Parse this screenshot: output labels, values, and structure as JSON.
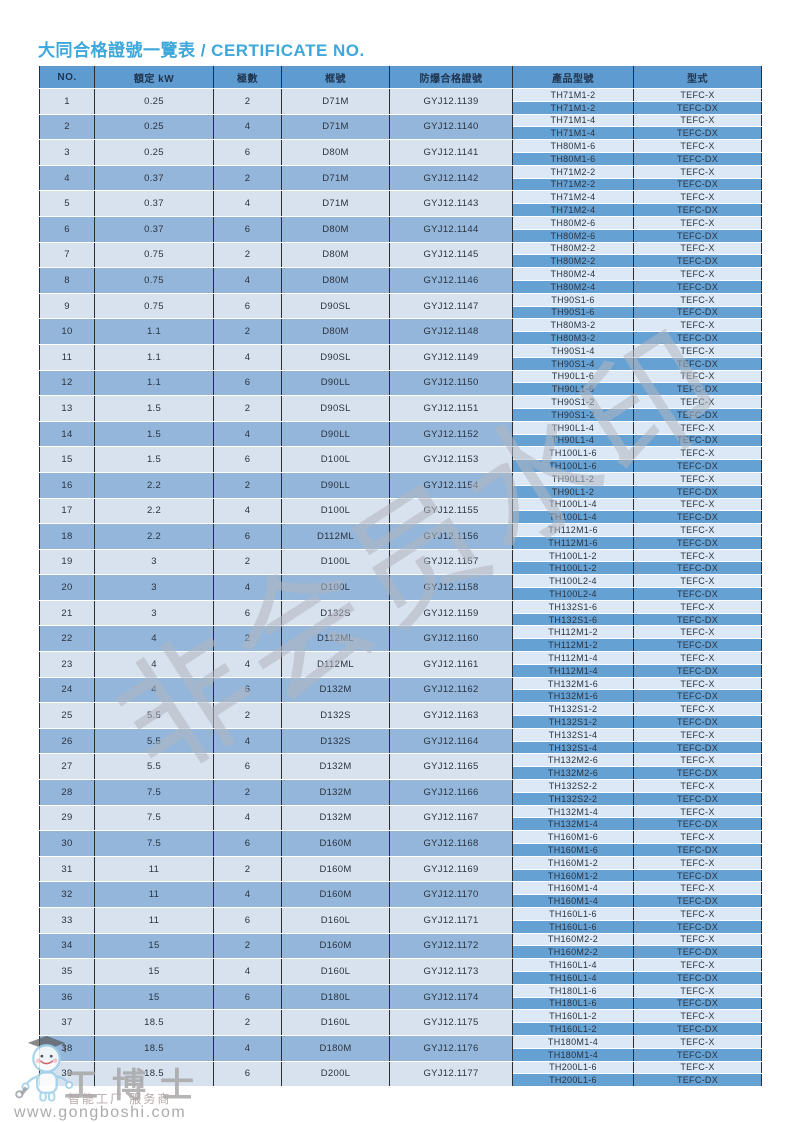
{
  "page": {
    "title": "大同合格證號一覽表 / CERTIFICATE NO."
  },
  "colors": {
    "header_bg": "#5e9bd1",
    "row_light": "#d8e1ee",
    "row_dark": "#94b6da",
    "sub_light": "#dce8f5",
    "sub_dark": "#66a1d4",
    "title": "#3ea7db"
  },
  "table": {
    "columns": [
      "NO.",
      "額定 kW",
      "極數",
      "框號",
      "防爆合格證號",
      "產品型號",
      "型式"
    ],
    "rows": [
      {
        "no": "1",
        "kw": "0.25",
        "poles": "2",
        "frame": "D71M",
        "cert": "GYJ12.1139",
        "entries": [
          {
            "model": "TH71M1-2",
            "type": "TEFC-X"
          },
          {
            "model": "TH71M1-2",
            "type": "TEFC-DX"
          }
        ]
      },
      {
        "no": "2",
        "kw": "0.25",
        "poles": "4",
        "frame": "D71M",
        "cert": "GYJ12.1140",
        "entries": [
          {
            "model": "TH71M1-4",
            "type": "TEFC-X"
          },
          {
            "model": "TH71M1-4",
            "type": "TEFC-DX"
          }
        ]
      },
      {
        "no": "3",
        "kw": "0.25",
        "poles": "6",
        "frame": "D80M",
        "cert": "GYJ12.1141",
        "entries": [
          {
            "model": "TH80M1-6",
            "type": "TEFC-X"
          },
          {
            "model": "TH80M1-6",
            "type": "TEFC-DX"
          }
        ]
      },
      {
        "no": "4",
        "kw": "0.37",
        "poles": "2",
        "frame": "D71M",
        "cert": "GYJ12.1142",
        "entries": [
          {
            "model": "TH71M2-2",
            "type": "TEFC-X"
          },
          {
            "model": "TH71M2-2",
            "type": "TEFC-DX"
          }
        ]
      },
      {
        "no": "5",
        "kw": "0.37",
        "poles": "4",
        "frame": "D71M",
        "cert": "GYJ12.1143",
        "entries": [
          {
            "model": "TH71M2-4",
            "type": "TEFC-X"
          },
          {
            "model": "TH71M2-4",
            "type": "TEFC-DX"
          }
        ]
      },
      {
        "no": "6",
        "kw": "0.37",
        "poles": "6",
        "frame": "D80M",
        "cert": "GYJ12.1144",
        "entries": [
          {
            "model": "TH80M2-6",
            "type": "TEFC-X"
          },
          {
            "model": "TH80M2-6",
            "type": "TEFC-DX"
          }
        ]
      },
      {
        "no": "7",
        "kw": "0.75",
        "poles": "2",
        "frame": "D80M",
        "cert": "GYJ12.1145",
        "entries": [
          {
            "model": "TH80M2-2",
            "type": "TEFC-X"
          },
          {
            "model": "TH80M2-2",
            "type": "TEFC-DX"
          }
        ]
      },
      {
        "no": "8",
        "kw": "0.75",
        "poles": "4",
        "frame": "D80M",
        "cert": "GYJ12.1146",
        "entries": [
          {
            "model": "TH80M2-4",
            "type": "TEFC-X"
          },
          {
            "model": "TH80M2-4",
            "type": "TEFC-DX"
          }
        ]
      },
      {
        "no": "9",
        "kw": "0.75",
        "poles": "6",
        "frame": "D90SL",
        "cert": "GYJ12.1147",
        "entries": [
          {
            "model": "TH90S1-6",
            "type": "TEFC-X"
          },
          {
            "model": "TH90S1-6",
            "type": "TEFC-DX"
          }
        ]
      },
      {
        "no": "10",
        "kw": "1.1",
        "poles": "2",
        "frame": "D80M",
        "cert": "GYJ12.1148",
        "entries": [
          {
            "model": "TH80M3-2",
            "type": "TEFC-X"
          },
          {
            "model": "TH80M3-2",
            "type": "TEFC-DX"
          }
        ]
      },
      {
        "no": "11",
        "kw": "1.1",
        "poles": "4",
        "frame": "D90SL",
        "cert": "GYJ12.1149",
        "entries": [
          {
            "model": "TH90S1-4",
            "type": "TEFC-X"
          },
          {
            "model": "TH90S1-4",
            "type": "TEFC-DX"
          }
        ]
      },
      {
        "no": "12",
        "kw": "1.1",
        "poles": "6",
        "frame": "D90LL",
        "cert": "GYJ12.1150",
        "entries": [
          {
            "model": "TH90L1-6",
            "type": "TEFC-X"
          },
          {
            "model": "TH90L1-6",
            "type": "TEFC-DX"
          }
        ]
      },
      {
        "no": "13",
        "kw": "1.5",
        "poles": "2",
        "frame": "D90SL",
        "cert": "GYJ12.1151",
        "entries": [
          {
            "model": "TH90S1-2",
            "type": "TEFC-X"
          },
          {
            "model": "TH90S1-2",
            "type": "TEFC-DX"
          }
        ]
      },
      {
        "no": "14",
        "kw": "1.5",
        "poles": "4",
        "frame": "D90LL",
        "cert": "GYJ12.1152",
        "entries": [
          {
            "model": "TH90L1-4",
            "type": "TEFC-X"
          },
          {
            "model": "TH90L1-4",
            "type": "TEFC-DX"
          }
        ]
      },
      {
        "no": "15",
        "kw": "1.5",
        "poles": "6",
        "frame": "D100L",
        "cert": "GYJ12.1153",
        "entries": [
          {
            "model": "TH100L1-6",
            "type": "TEFC-X"
          },
          {
            "model": "TH100L1-6",
            "type": "TEFC-DX"
          }
        ]
      },
      {
        "no": "16",
        "kw": "2.2",
        "poles": "2",
        "frame": "D90LL",
        "cert": "GYJ12.1154",
        "entries": [
          {
            "model": "TH90L1-2",
            "type": "TEFC-X"
          },
          {
            "model": "TH90L1-2",
            "type": "TEFC-DX"
          }
        ]
      },
      {
        "no": "17",
        "kw": "2.2",
        "poles": "4",
        "frame": "D100L",
        "cert": "GYJ12.1155",
        "entries": [
          {
            "model": "TH100L1-4",
            "type": "TEFC-X"
          },
          {
            "model": "TH100L1-4",
            "type": "TEFC-DX"
          }
        ]
      },
      {
        "no": "18",
        "kw": "2.2",
        "poles": "6",
        "frame": "D112ML",
        "cert": "GYJ12.1156",
        "entries": [
          {
            "model": "TH112M1-6",
            "type": "TEFC-X"
          },
          {
            "model": "TH112M1-6",
            "type": "TEFC-DX"
          }
        ]
      },
      {
        "no": "19",
        "kw": "3",
        "poles": "2",
        "frame": "D100L",
        "cert": "GYJ12.1157",
        "entries": [
          {
            "model": "TH100L1-2",
            "type": "TEFC-X"
          },
          {
            "model": "TH100L1-2",
            "type": "TEFC-DX"
          }
        ]
      },
      {
        "no": "20",
        "kw": "3",
        "poles": "4",
        "frame": "D100L",
        "cert": "GYJ12.1158",
        "entries": [
          {
            "model": "TH100L2-4",
            "type": "TEFC-X"
          },
          {
            "model": "TH100L2-4",
            "type": "TEFC-DX"
          }
        ]
      },
      {
        "no": "21",
        "kw": "3",
        "poles": "6",
        "frame": "D132S",
        "cert": "GYJ12.1159",
        "entries": [
          {
            "model": "TH132S1-6",
            "type": "TEFC-X"
          },
          {
            "model": "TH132S1-6",
            "type": "TEFC-DX"
          }
        ]
      },
      {
        "no": "22",
        "kw": "4",
        "poles": "2",
        "frame": "D112ML",
        "cert": "GYJ12.1160",
        "entries": [
          {
            "model": "TH112M1-2",
            "type": "TEFC-X"
          },
          {
            "model": "TH112M1-2",
            "type": "TEFC-DX"
          }
        ]
      },
      {
        "no": "23",
        "kw": "4",
        "poles": "4",
        "frame": "D112ML",
        "cert": "GYJ12.1161",
        "entries": [
          {
            "model": "TH112M1-4",
            "type": "TEFC-X"
          },
          {
            "model": "TH112M1-4",
            "type": "TEFC-DX"
          }
        ]
      },
      {
        "no": "24",
        "kw": "4",
        "poles": "6",
        "frame": "D132M",
        "cert": "GYJ12.1162",
        "entries": [
          {
            "model": "TH132M1-6",
            "type": "TEFC-X"
          },
          {
            "model": "TH132M1-6",
            "type": "TEFC-DX"
          }
        ]
      },
      {
        "no": "25",
        "kw": "5.5",
        "poles": "2",
        "frame": "D132S",
        "cert": "GYJ12.1163",
        "entries": [
          {
            "model": "TH132S1-2",
            "type": "TEFC-X"
          },
          {
            "model": "TH132S1-2",
            "type": "TEFC-DX"
          }
        ]
      },
      {
        "no": "26",
        "kw": "5.5",
        "poles": "4",
        "frame": "D132S",
        "cert": "GYJ12.1164",
        "entries": [
          {
            "model": "TH132S1-4",
            "type": "TEFC-X"
          },
          {
            "model": "TH132S1-4",
            "type": "TEFC-DX"
          }
        ]
      },
      {
        "no": "27",
        "kw": "5.5",
        "poles": "6",
        "frame": "D132M",
        "cert": "GYJ12.1165",
        "entries": [
          {
            "model": "TH132M2-6",
            "type": "TEFC-X"
          },
          {
            "model": "TH132M2-6",
            "type": "TEFC-DX"
          }
        ]
      },
      {
        "no": "28",
        "kw": "7.5",
        "poles": "2",
        "frame": "D132M",
        "cert": "GYJ12.1166",
        "entries": [
          {
            "model": "TH132S2-2",
            "type": "TEFC-X"
          },
          {
            "model": "TH132S2-2",
            "type": "TEFC-DX"
          }
        ]
      },
      {
        "no": "29",
        "kw": "7.5",
        "poles": "4",
        "frame": "D132M",
        "cert": "GYJ12.1167",
        "entries": [
          {
            "model": "TH132M1-4",
            "type": "TEFC-X"
          },
          {
            "model": "TH132M1-4",
            "type": "TEFC-DX"
          }
        ]
      },
      {
        "no": "30",
        "kw": "7.5",
        "poles": "6",
        "frame": "D160M",
        "cert": "GYJ12.1168",
        "entries": [
          {
            "model": "TH160M1-6",
            "type": "TEFC-X"
          },
          {
            "model": "TH160M1-6",
            "type": "TEFC-DX"
          }
        ]
      },
      {
        "no": "31",
        "kw": "11",
        "poles": "2",
        "frame": "D160M",
        "cert": "GYJ12.1169",
        "entries": [
          {
            "model": "TH160M1-2",
            "type": "TEFC-X"
          },
          {
            "model": "TH160M1-2",
            "type": "TEFC-DX"
          }
        ]
      },
      {
        "no": "32",
        "kw": "11",
        "poles": "4",
        "frame": "D160M",
        "cert": "GYJ12.1170",
        "entries": [
          {
            "model": "TH160M1-4",
            "type": "TEFC-X"
          },
          {
            "model": "TH160M1-4",
            "type": "TEFC-DX"
          }
        ]
      },
      {
        "no": "33",
        "kw": "11",
        "poles": "6",
        "frame": "D160L",
        "cert": "GYJ12.1171",
        "entries": [
          {
            "model": "TH160L1-6",
            "type": "TEFC-X"
          },
          {
            "model": "TH160L1-6",
            "type": "TEFC-DX"
          }
        ]
      },
      {
        "no": "34",
        "kw": "15",
        "poles": "2",
        "frame": "D160M",
        "cert": "GYJ12.1172",
        "entries": [
          {
            "model": "TH160M2-2",
            "type": "TEFC-X"
          },
          {
            "model": "TH160M2-2",
            "type": "TEFC-DX"
          }
        ]
      },
      {
        "no": "35",
        "kw": "15",
        "poles": "4",
        "frame": "D160L",
        "cert": "GYJ12.1173",
        "entries": [
          {
            "model": "TH160L1-4",
            "type": "TEFC-X"
          },
          {
            "model": "TH160L1-4",
            "type": "TEFC-DX"
          }
        ]
      },
      {
        "no": "36",
        "kw": "15",
        "poles": "6",
        "frame": "D180L",
        "cert": "GYJ12.1174",
        "entries": [
          {
            "model": "TH180L1-6",
            "type": "TEFC-X"
          },
          {
            "model": "TH180L1-6",
            "type": "TEFC-DX"
          }
        ]
      },
      {
        "no": "37",
        "kw": "18.5",
        "poles": "2",
        "frame": "D160L",
        "cert": "GYJ12.1175",
        "entries": [
          {
            "model": "TH160L1-2",
            "type": "TEFC-X"
          },
          {
            "model": "TH160L1-2",
            "type": "TEFC-DX"
          }
        ]
      },
      {
        "no": "38",
        "kw": "18.5",
        "poles": "4",
        "frame": "D180M",
        "cert": "GYJ12.1176",
        "entries": [
          {
            "model": "TH180M1-4",
            "type": "TEFC-X"
          },
          {
            "model": "TH180M1-4",
            "type": "TEFC-DX"
          }
        ]
      },
      {
        "no": "39",
        "kw": "18.5",
        "poles": "6",
        "frame": "D200L",
        "cert": "GYJ12.1177",
        "entries": [
          {
            "model": "TH200L1-6",
            "type": "TEFC-X"
          },
          {
            "model": "TH200L1-6",
            "type": "TEFC-DX"
          }
        ]
      }
    ]
  },
  "watermarks": {
    "diagonal": "非会员水印",
    "logo_title": "工博士",
    "logo_subtitle": "智能工厂 服务商",
    "logo_url": "www.gongboshi.com",
    "mascot_icon": "gongboshi-mascot-icon"
  }
}
